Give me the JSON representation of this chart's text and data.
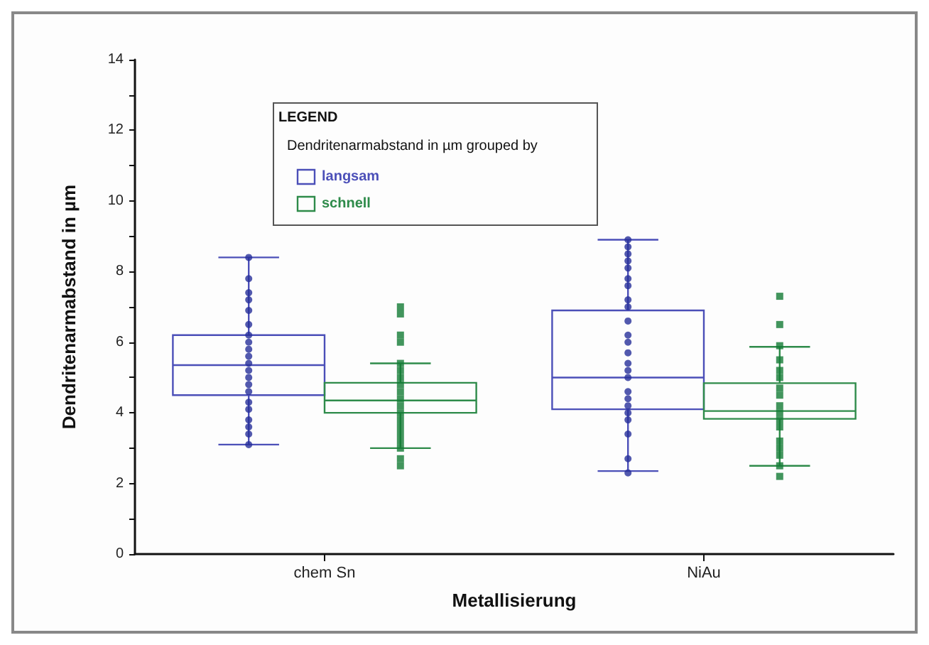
{
  "chart_data": {
    "type": "box",
    "xlabel": "Metallisierung",
    "ylabel": "Dendritenarmabstand in µm",
    "legend_title": "LEGEND\nDendritenarmabstand in µm grouped by",
    "legend": "top left",
    "grid": false,
    "categories": [
      "chem Sn",
      "NiAu"
    ],
    "ylim": [
      0,
      14
    ],
    "yticks": [
      0,
      {
        "value": 1,
        "label": null
      },
      2,
      {
        "value": 3,
        "label": null
      },
      4,
      {
        "value": 5,
        "label": null
      },
      6,
      {
        "value": 7,
        "label": null
      },
      8,
      {
        "value": 9,
        "label": null
      },
      10,
      {
        "value": 11,
        "label": null
      },
      12,
      {
        "value": 13,
        "label": null
      },
      14
    ],
    "series": [
      {
        "name": "langsam",
        "type": "box",
        "color": "#4b4fb8",
        "boxes": [
          {
            "low": 3.1,
            "q1": 4.5,
            "median": 5.35,
            "q3": 6.2,
            "high": 8.4
          },
          {
            "low": 2.35,
            "q1": 4.1,
            "median": 5.0,
            "q3": 6.9,
            "high": 8.9
          }
        ]
      },
      {
        "name": "schnell",
        "type": "box",
        "color": "#2e8b4a",
        "boxes": [
          {
            "low": 3.0,
            "q1": 4.0,
            "median": 4.35,
            "q3": 4.85,
            "high": 5.4
          },
          {
            "low": 2.5,
            "q1": 3.83,
            "median": 4.05,
            "q3": 4.84,
            "high": 5.87
          }
        ]
      },
      {
        "type": "scatter",
        "color": "#27309a",
        "marker": "circle",
        "x": [
          "chem Sn",
          "chem Sn",
          "chem Sn",
          "chem Sn",
          "chem Sn",
          "chem Sn",
          "chem Sn",
          "chem Sn",
          "chem Sn",
          "chem Sn",
          "chem Sn",
          "chem Sn",
          "chem Sn",
          "chem Sn",
          "chem Sn",
          "chem Sn",
          "chem Sn",
          "chem Sn",
          "chem Sn",
          "chem Sn",
          "chem Sn",
          "NiAu",
          "NiAu",
          "NiAu",
          "NiAu",
          "NiAu",
          "NiAu",
          "NiAu",
          "NiAu",
          "NiAu",
          "NiAu",
          "NiAu",
          "NiAu",
          "NiAu",
          "NiAu",
          "NiAu",
          "NiAu",
          "NiAu",
          "NiAu",
          "NiAu",
          "NiAu",
          "NiAu",
          "NiAu",
          "NiAu",
          "NiAu"
        ],
        "values": [
          8.4,
          7.8,
          7.4,
          7.2,
          6.9,
          6.5,
          6.2,
          6.0,
          5.8,
          5.6,
          5.4,
          5.2,
          5.0,
          4.8,
          4.6,
          4.3,
          4.1,
          3.8,
          3.6,
          3.4,
          3.1,
          8.9,
          8.7,
          8.5,
          8.3,
          8.1,
          7.8,
          7.6,
          7.2,
          7.0,
          6.6,
          6.2,
          6.0,
          5.7,
          5.4,
          5.2,
          5.0,
          4.6,
          4.4,
          4.2,
          4.0,
          3.8,
          3.4,
          2.7,
          2.3
        ]
      },
      {
        "type": "scatter",
        "color": "#137a35",
        "marker": "square",
        "x": [
          "chem Sn",
          "chem Sn",
          "chem Sn",
          "chem Sn",
          "chem Sn",
          "chem Sn",
          "chem Sn",
          "chem Sn",
          "chem Sn",
          "chem Sn",
          "chem Sn",
          "chem Sn",
          "chem Sn",
          "chem Sn",
          "chem Sn",
          "chem Sn",
          "chem Sn",
          "chem Sn",
          "chem Sn",
          "NiAu",
          "NiAu",
          "NiAu",
          "NiAu",
          "NiAu",
          "NiAu",
          "NiAu",
          "NiAu",
          "NiAu",
          "NiAu",
          "NiAu",
          "NiAu",
          "NiAu",
          "NiAu",
          "NiAu",
          "NiAu",
          "NiAu"
        ],
        "values": [
          7.0,
          6.8,
          6.2,
          6.0,
          5.4,
          5.2,
          5.0,
          4.8,
          4.6,
          4.4,
          4.2,
          4.0,
          3.8,
          3.6,
          3.4,
          3.2,
          3.0,
          2.7,
          2.5,
          7.3,
          6.5,
          5.9,
          5.5,
          5.2,
          5.0,
          4.7,
          4.5,
          4.2,
          4.0,
          3.8,
          3.6,
          3.2,
          3.0,
          2.8,
          2.5,
          2.2
        ]
      }
    ]
  }
}
